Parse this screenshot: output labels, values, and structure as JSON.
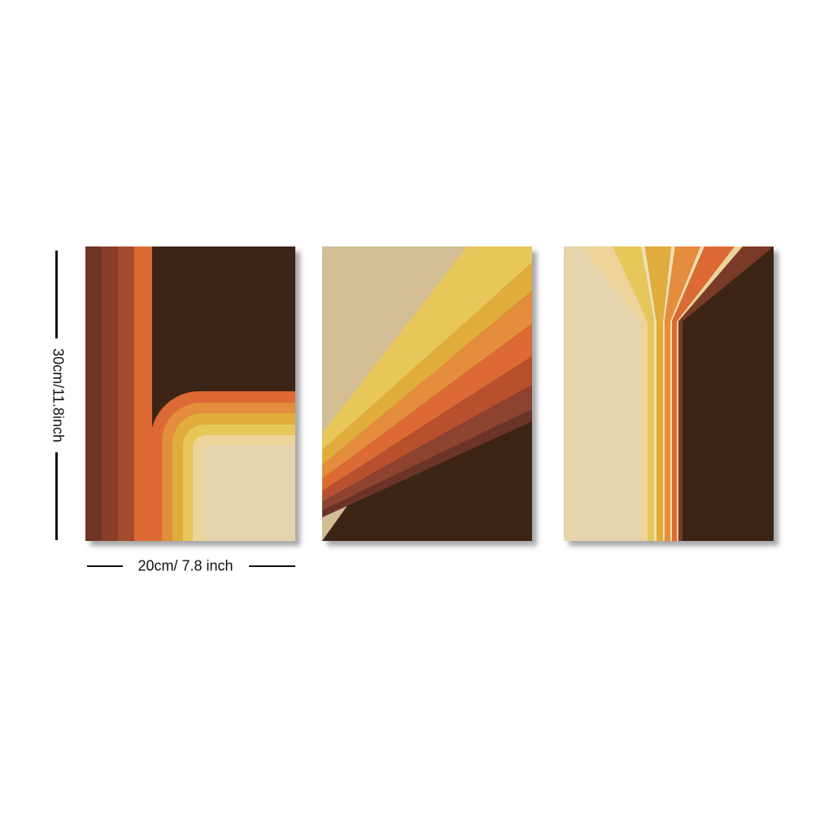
{
  "dimensions": {
    "height_label": "30cm/11.8inch",
    "width_label": "20cm/ 7.8 inch"
  },
  "palette": {
    "dark_brown": "#3d2516",
    "rust": "#7a3a28",
    "burnt": "#a5452b",
    "orange": "#dd6a34",
    "amber": "#e48d3c",
    "gold": "#e0ac3b",
    "mustard": "#e8c75a",
    "pale": "#ecd49a",
    "cream": "#e6d4ae",
    "tan": "#d2bd94"
  },
  "panels": [
    {
      "name": "panel-arch"
    },
    {
      "name": "panel-diagonal"
    },
    {
      "name": "panel-fan"
    }
  ]
}
